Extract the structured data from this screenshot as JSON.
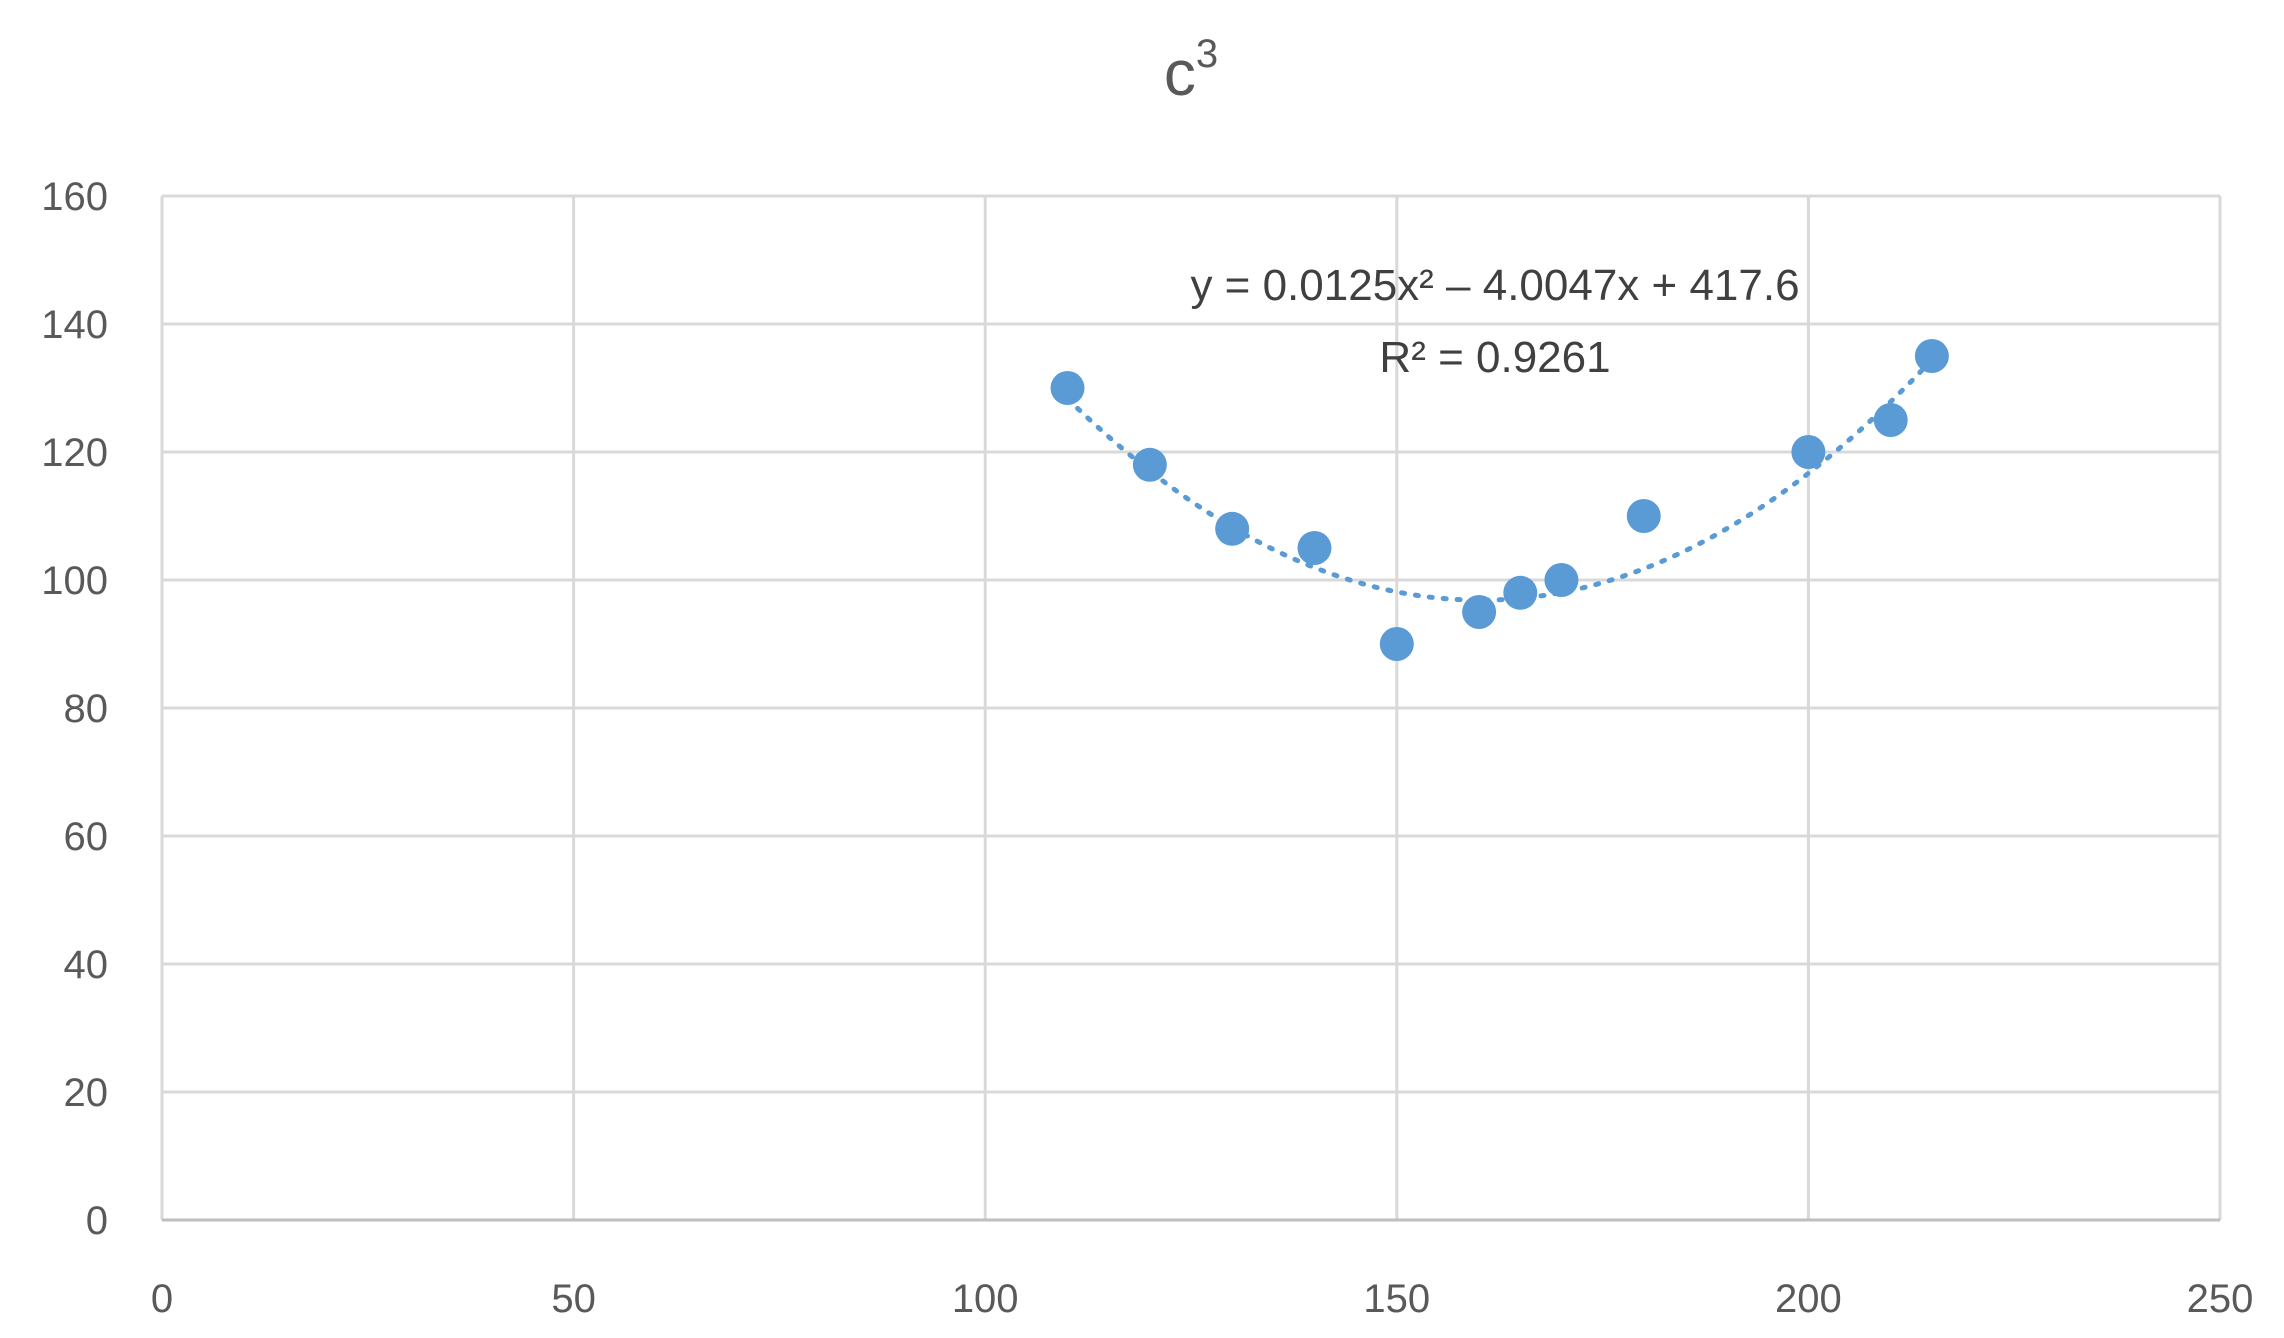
{
  "chart_data": {
    "type": "scatter",
    "title": "c",
    "title_superscript": "3",
    "xlabel": "",
    "ylabel": "",
    "xlim": [
      0,
      250
    ],
    "ylim": [
      0,
      160
    ],
    "x_ticks": [
      0,
      50,
      100,
      150,
      200,
      250
    ],
    "y_ticks": [
      0,
      20,
      40,
      60,
      80,
      100,
      120,
      140,
      160
    ],
    "grid": true,
    "legend": "none",
    "series": [
      {
        "x": [
          110,
          120,
          130,
          140,
          150,
          160,
          165,
          170,
          180,
          200,
          210,
          215
        ],
        "y": [
          130,
          118,
          108,
          105,
          90,
          95,
          98,
          100,
          110,
          120,
          125,
          135
        ]
      }
    ],
    "trendline": {
      "type": "polynomial",
      "order": 2,
      "coefficients": [
        0.0125,
        -4.0047,
        417.6
      ],
      "x_range": [
        110,
        215
      ],
      "equation_label": "y = 0.0125x² – 4.0047x + 417.6",
      "r2_label": "R² = 0.9261"
    },
    "colors": {
      "marker": "#5b9bd5",
      "trendline": "#5b9bd5",
      "grid": "#d9d9d9",
      "text": "#595959"
    }
  }
}
